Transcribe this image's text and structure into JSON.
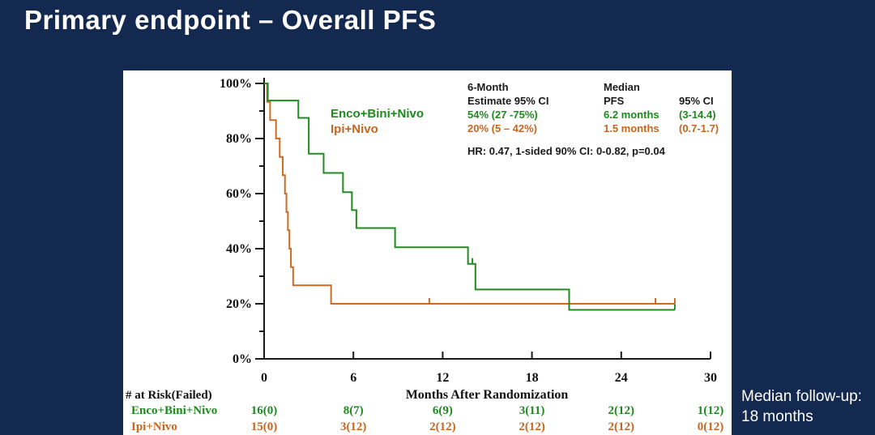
{
  "slide": {
    "title": "Primary endpoint – Overall PFS",
    "note_line1": "Median follow-up:",
    "note_line2": "18 months"
  },
  "colors": {
    "background": "#14294F",
    "panel": "#FFFFFF",
    "green": "#228B22",
    "green_text": "#1E8A1E",
    "orange": "#CE6B22",
    "orange_text": "#C8651E",
    "axis": "#1A1A1A"
  },
  "legend": {
    "series1": "Enco+Bini+Nivo",
    "series2": "Ipi+Nivo"
  },
  "stats": {
    "col1_header1": "6-Month",
    "col1_header2": "Estimate 95% CI",
    "col1_row1": "54% (27 -75%)",
    "col1_row2": "20% (5 – 42%)",
    "col2_header1": "Median",
    "col2_header2": "PFS",
    "col3_header2": "95% CI",
    "col2_row1": "6.2 months",
    "col3_row1": "(3-14.4)",
    "col2_row2": "1.5 months",
    "col3_row2": "(0.7-1.7)",
    "hr_line": "HR: 0.47, 1-sided 90% CI: 0-0.82, p=0.04"
  },
  "chart_data": {
    "type": "line",
    "subtype": "kaplan-meier-step",
    "xlabel": "Months After Randomization",
    "ylabel": "",
    "xlim": [
      0,
      30
    ],
    "ylim": [
      0,
      100
    ],
    "x_ticks": [
      0,
      6,
      12,
      18,
      24,
      30
    ],
    "y_major_ticks_pct": [
      0,
      20,
      40,
      60,
      80,
      100
    ],
    "y_minor_ticks_pct": [
      10,
      30,
      50,
      70,
      90
    ],
    "y_tick_suffix": "%",
    "grid": false,
    "legend_position": "inside-top-left",
    "series": [
      {
        "name": "Enco+Bini+Nivo",
        "color_key": "green",
        "steps": [
          [
            0,
            100
          ],
          [
            0.25,
            93.8
          ],
          [
            2.3,
            87.5
          ],
          [
            3.0,
            74.5
          ],
          [
            4.0,
            67.5
          ],
          [
            5.3,
            60.5
          ],
          [
            5.9,
            54
          ],
          [
            6.2,
            47.5
          ],
          [
            8.8,
            40.5
          ],
          [
            13.7,
            34.5
          ],
          [
            14.2,
            25.2
          ],
          [
            20.5,
            17.8
          ]
        ],
        "end_month": 27.6,
        "censors": [
          [
            14.0,
            34.5
          ],
          [
            27.6,
            17.8
          ]
        ],
        "six_month_estimate": "54% (27 -75%)",
        "median_pfs_months": 6.2,
        "median_ci": "3-14.4"
      },
      {
        "name": "Ipi+Nivo",
        "color_key": "orange",
        "steps": [
          [
            0,
            100
          ],
          [
            0.2,
            93.3
          ],
          [
            0.4,
            86.7
          ],
          [
            0.8,
            80
          ],
          [
            1.05,
            73.3
          ],
          [
            1.25,
            66.7
          ],
          [
            1.4,
            60
          ],
          [
            1.5,
            53.3
          ],
          [
            1.6,
            46.7
          ],
          [
            1.7,
            40
          ],
          [
            1.8,
            33.3
          ],
          [
            1.95,
            26.7
          ],
          [
            4.5,
            20
          ]
        ],
        "end_month": 27.6,
        "censors": [
          [
            11.1,
            20
          ],
          [
            26.3,
            20
          ],
          [
            27.6,
            20
          ]
        ],
        "six_month_estimate": "20% (5 – 42%)",
        "median_pfs_months": 1.5,
        "median_ci": "0.7-1.7"
      }
    ],
    "at_risk": {
      "header": "# at Risk(Failed)",
      "timepoints": [
        0,
        6,
        12,
        18,
        24,
        30
      ],
      "rows": [
        {
          "label": "Enco+Bini+Nivo",
          "color_key": "green",
          "values": [
            "16(0)",
            "8(7)",
            "6(9)",
            "3(11)",
            "2(12)",
            "1(12)"
          ]
        },
        {
          "label": "Ipi+Nivo",
          "color_key": "orange",
          "values": [
            "15(0)",
            "3(12)",
            "2(12)",
            "2(12)",
            "2(12)",
            "0(12)"
          ]
        }
      ]
    }
  }
}
